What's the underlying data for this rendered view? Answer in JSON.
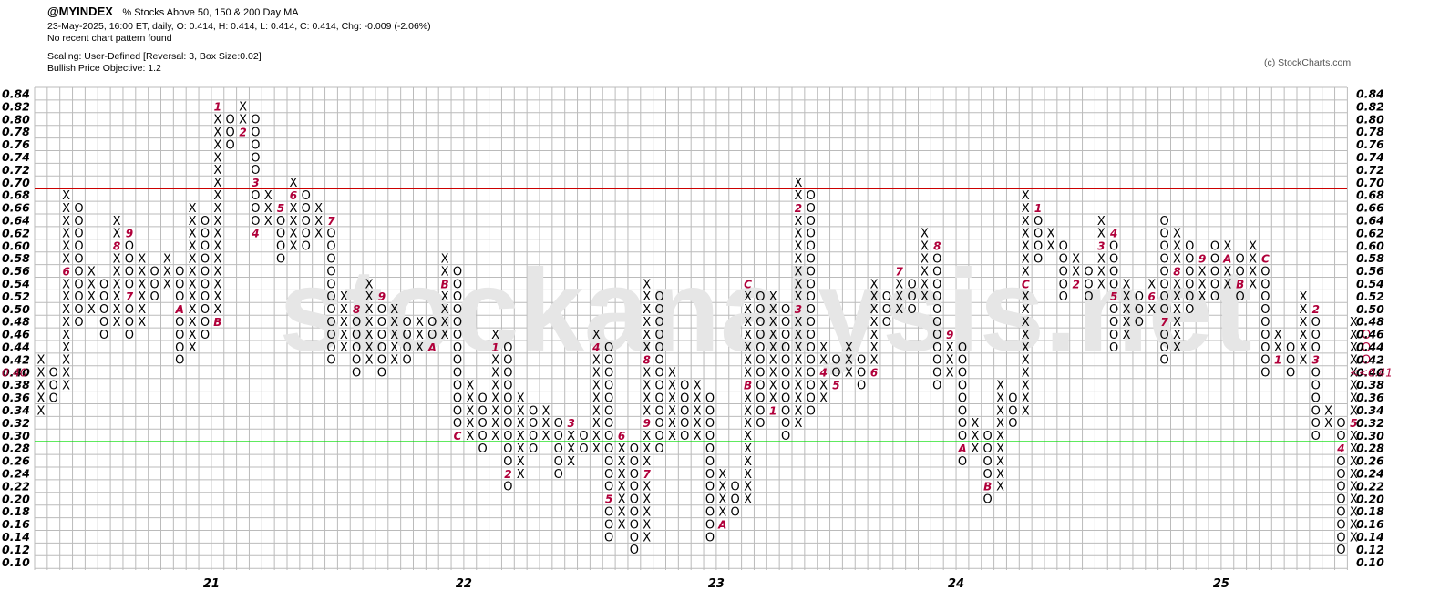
{
  "header": {
    "symbol": "@MYINDEX",
    "title": "% Stocks Above 50, 150 & 200 Day MA",
    "quote": "23-May-2025, 16:00 ET, daily, O: 0.414, H: 0.414, L: 0.414, C: 0.414, Chg: -0.009 (-2.06%)",
    "pattern": "No recent chart pattern found",
    "scaling": "Scaling: User-Defined [Reversal: 3, Box Size:0.02]",
    "objective": "Bullish Price Objective: 1.2"
  },
  "credit": "(c) StockCharts.com",
  "watermark": "stockanalysis.net",
  "colors": {
    "x": "#000000",
    "o": "#000000",
    "month": "#b0003a",
    "resistance": "#cc0000",
    "support": "#00dd00",
    "grid": "#bbbbbb",
    "watermark": "#e6e6e6"
  },
  "chart_data": {
    "type": "point-and-figure",
    "box_size": 0.02,
    "reversal": 3,
    "ylim": [
      0.1,
      0.84
    ],
    "y_ticks": [
      "0.84",
      "0.82",
      "0.80",
      "0.78",
      "0.76",
      "0.74",
      "0.72",
      "0.70",
      "0.68",
      "0.66",
      "0.64",
      "0.62",
      "0.60",
      "0.58",
      "0.56",
      "0.54",
      "0.52",
      "0.50",
      "0.48",
      "0.46",
      "0.44",
      "0.42",
      "0.40",
      "0.38",
      "0.36",
      "0.34",
      "0.32",
      "0.30",
      "0.28",
      "0.26",
      "0.24",
      "0.22",
      "0.20",
      "0.18",
      "0.16",
      "0.14",
      "0.12",
      "0.10"
    ],
    "current_label": "0.40",
    "current_marker": "<<0.41",
    "x_labels": [
      {
        "label": "21",
        "column": 12
      },
      {
        "label": "22",
        "column": 32
      },
      {
        "label": "23",
        "column": 52
      },
      {
        "label": "24",
        "column": 71
      },
      {
        "label": "25",
        "column": 92
      }
    ],
    "resistance_level": 0.695,
    "support_level": 0.295,
    "columns": [
      {
        "t": "X",
        "lo": 0.34,
        "hi": 0.42
      },
      {
        "t": "O",
        "lo": 0.36,
        "hi": 0.4
      },
      {
        "t": "X",
        "lo": 0.38,
        "hi": 0.68,
        "m": {
          "0.56": "6"
        }
      },
      {
        "t": "O",
        "lo": 0.48,
        "hi": 0.66
      },
      {
        "t": "X",
        "lo": 0.5,
        "hi": 0.56
      },
      {
        "t": "O",
        "lo": 0.46,
        "hi": 0.54
      },
      {
        "t": "X",
        "lo": 0.48,
        "hi": 0.64,
        "m": {
          "0.60": "8"
        }
      },
      {
        "t": "O",
        "lo": 0.46,
        "hi": 0.62,
        "m": {
          "0.52": "7",
          "0.62": "9"
        }
      },
      {
        "t": "X",
        "lo": 0.48,
        "hi": 0.58
      },
      {
        "t": "O",
        "lo": 0.52,
        "hi": 0.56
      },
      {
        "t": "X",
        "lo": 0.54,
        "hi": 0.58
      },
      {
        "t": "O",
        "lo": 0.42,
        "hi": 0.56,
        "m": {
          "0.50": "A"
        }
      },
      {
        "t": "X",
        "lo": 0.44,
        "hi": 0.66
      },
      {
        "t": "O",
        "lo": 0.46,
        "hi": 0.64
      },
      {
        "t": "X",
        "lo": 0.48,
        "hi": 0.82,
        "m": {
          "0.82": "1",
          "0.48": "B"
        }
      },
      {
        "t": "O",
        "lo": 0.76,
        "hi": 0.8
      },
      {
        "t": "X",
        "lo": 0.78,
        "hi": 0.82,
        "m": {
          "0.78": "2"
        }
      },
      {
        "t": "O",
        "lo": 0.62,
        "hi": 0.8,
        "m": {
          "0.70": "3",
          "0.62": "4"
        }
      },
      {
        "t": "X",
        "lo": 0.64,
        "hi": 0.68
      },
      {
        "t": "O",
        "lo": 0.58,
        "hi": 0.66,
        "m": {
          "0.66": "5"
        }
      },
      {
        "t": "X",
        "lo": 0.6,
        "hi": 0.7,
        "m": {
          "0.68": "6"
        }
      },
      {
        "t": "O",
        "lo": 0.6,
        "hi": 0.68
      },
      {
        "t": "X",
        "lo": 0.62,
        "hi": 0.66
      },
      {
        "t": "O",
        "lo": 0.42,
        "hi": 0.64,
        "m": {
          "0.64": "7"
        }
      },
      {
        "t": "X",
        "lo": 0.44,
        "hi": 0.52
      },
      {
        "t": "O",
        "lo": 0.4,
        "hi": 0.5,
        "m": {
          "0.50": "8"
        }
      },
      {
        "t": "X",
        "lo": 0.42,
        "hi": 0.54
      },
      {
        "t": "O",
        "lo": 0.4,
        "hi": 0.52,
        "m": {
          "0.52": "9"
        }
      },
      {
        "t": "X",
        "lo": 0.42,
        "hi": 0.5
      },
      {
        "t": "O",
        "lo": 0.42,
        "hi": 0.48
      },
      {
        "t": "X",
        "lo": 0.44,
        "hi": 0.48
      },
      {
        "t": "O",
        "lo": 0.44,
        "hi": 0.48,
        "m": {
          "0.44": "A"
        }
      },
      {
        "t": "X",
        "lo": 0.46,
        "hi": 0.58,
        "m": {
          "0.54": "B"
        }
      },
      {
        "t": "O",
        "lo": 0.3,
        "hi": 0.56,
        "m": {
          "0.30": "C"
        }
      },
      {
        "t": "X",
        "lo": 0.3,
        "hi": 0.38
      },
      {
        "t": "O",
        "lo": 0.28,
        "hi": 0.36
      },
      {
        "t": "X",
        "lo": 0.3,
        "hi": 0.46,
        "m": {
          "0.44": "1"
        }
      },
      {
        "t": "O",
        "lo": 0.22,
        "hi": 0.44,
        "m": {
          "0.24": "2"
        }
      },
      {
        "t": "X",
        "lo": 0.24,
        "hi": 0.36
      },
      {
        "t": "O",
        "lo": 0.28,
        "hi": 0.34
      },
      {
        "t": "X",
        "lo": 0.3,
        "hi": 0.34
      },
      {
        "t": "O",
        "lo": 0.24,
        "hi": 0.32
      },
      {
        "t": "X",
        "lo": 0.26,
        "hi": 0.32,
        "m": {
          "0.32": "3"
        }
      },
      {
        "t": "O",
        "lo": 0.28,
        "hi": 0.3
      },
      {
        "t": "X",
        "lo": 0.28,
        "hi": 0.46,
        "m": {
          "0.44": "4"
        }
      },
      {
        "t": "O",
        "lo": 0.14,
        "hi": 0.44,
        "m": {
          "0.20": "5"
        }
      },
      {
        "t": "X",
        "lo": 0.16,
        "hi": 0.3,
        "m": {
          "0.30": "6"
        }
      },
      {
        "t": "O",
        "lo": 0.12,
        "hi": 0.28
      },
      {
        "t": "X",
        "lo": 0.14,
        "hi": 0.54,
        "m": {
          "0.24": "7",
          "0.42": "8",
          "0.32": "9"
        }
      },
      {
        "t": "O",
        "lo": 0.28,
        "hi": 0.52
      },
      {
        "t": "X",
        "lo": 0.3,
        "hi": 0.4
      },
      {
        "t": "O",
        "lo": 0.3,
        "hi": 0.38
      },
      {
        "t": "X",
        "lo": 0.3,
        "hi": 0.38
      },
      {
        "t": "O",
        "lo": 0.14,
        "hi": 0.36
      },
      {
        "t": "X",
        "lo": 0.16,
        "hi": 0.24,
        "m": {
          "0.16": "A"
        }
      },
      {
        "t": "O",
        "lo": 0.18,
        "hi": 0.22
      },
      {
        "t": "X",
        "lo": 0.2,
        "hi": 0.54,
        "m": {
          "0.38": "B",
          "0.54": "C"
        }
      },
      {
        "t": "O",
        "lo": 0.32,
        "hi": 0.52
      },
      {
        "t": "X",
        "lo": 0.34,
        "hi": 0.52,
        "m": {
          "0.34": "1"
        }
      },
      {
        "t": "O",
        "lo": 0.3,
        "hi": 0.5
      },
      {
        "t": "X",
        "lo": 0.32,
        "hi": 0.7,
        "m": {
          "0.66": "2",
          "0.50": "3"
        }
      },
      {
        "t": "O",
        "lo": 0.34,
        "hi": 0.68
      },
      {
        "t": "X",
        "lo": 0.36,
        "hi": 0.44,
        "m": {
          "0.40": "4"
        }
      },
      {
        "t": "O",
        "lo": 0.38,
        "hi": 0.42,
        "m": {
          "0.38": "5"
        }
      },
      {
        "t": "X",
        "lo": 0.4,
        "hi": 0.44
      },
      {
        "t": "O",
        "lo": 0.38,
        "hi": 0.42
      },
      {
        "t": "X",
        "lo": 0.4,
        "hi": 0.54,
        "m": {
          "0.40": "6"
        }
      },
      {
        "t": "O",
        "lo": 0.48,
        "hi": 0.52
      },
      {
        "t": "X",
        "lo": 0.5,
        "hi": 0.56,
        "m": {
          "0.56": "7"
        }
      },
      {
        "t": "O",
        "lo": 0.5,
        "hi": 0.54
      },
      {
        "t": "X",
        "lo": 0.52,
        "hi": 0.62
      },
      {
        "t": "O",
        "lo": 0.38,
        "hi": 0.6,
        "m": {
          "0.60": "8"
        }
      },
      {
        "t": "X",
        "lo": 0.4,
        "hi": 0.46,
        "m": {
          "0.46": "9"
        }
      },
      {
        "t": "O",
        "lo": 0.26,
        "hi": 0.44,
        "m": {
          "0.28": "A"
        }
      },
      {
        "t": "X",
        "lo": 0.28,
        "hi": 0.32
      },
      {
        "t": "O",
        "lo": 0.2,
        "hi": 0.3,
        "m": {
          "0.22": "B"
        }
      },
      {
        "t": "X",
        "lo": 0.22,
        "hi": 0.38
      },
      {
        "t": "O",
        "lo": 0.32,
        "hi": 0.36
      },
      {
        "t": "X",
        "lo": 0.34,
        "hi": 0.68,
        "m": {
          "0.54": "C"
        }
      },
      {
        "t": "O",
        "lo": 0.58,
        "hi": 0.66,
        "m": {
          "0.66": "1"
        }
      },
      {
        "t": "X",
        "lo": 0.6,
        "hi": 0.62
      },
      {
        "t": "O",
        "lo": 0.52,
        "hi": 0.6
      },
      {
        "t": "X",
        "lo": 0.54,
        "hi": 0.58,
        "m": {
          "0.54": "2"
        }
      },
      {
        "t": "O",
        "lo": 0.52,
        "hi": 0.56
      },
      {
        "t": "X",
        "lo": 0.54,
        "hi": 0.64,
        "m": {
          "0.60": "3"
        }
      },
      {
        "t": "O",
        "lo": 0.44,
        "hi": 0.62,
        "m": {
          "0.62": "4",
          "0.52": "5"
        }
      },
      {
        "t": "X",
        "lo": 0.46,
        "hi": 0.54
      },
      {
        "t": "O",
        "lo": 0.48,
        "hi": 0.52
      },
      {
        "t": "X",
        "lo": 0.5,
        "hi": 0.54,
        "m": {
          "0.52": "6"
        }
      },
      {
        "t": "O",
        "lo": 0.42,
        "hi": 0.64,
        "m": {
          "0.48": "7"
        }
      },
      {
        "t": "X",
        "lo": 0.44,
        "hi": 0.62,
        "m": {
          "0.56": "8"
        }
      },
      {
        "t": "O",
        "lo": 0.5,
        "hi": 0.6
      },
      {
        "t": "X",
        "lo": 0.52,
        "hi": 0.58,
        "m": {
          "0.58": "9"
        }
      },
      {
        "t": "O",
        "lo": 0.52,
        "hi": 0.6
      },
      {
        "t": "X",
        "lo": 0.54,
        "hi": 0.6,
        "m": {
          "0.58": "A"
        }
      },
      {
        "t": "O",
        "lo": 0.52,
        "hi": 0.58,
        "m": {
          "0.54": "B"
        }
      },
      {
        "t": "X",
        "lo": 0.54,
        "hi": 0.6
      },
      {
        "t": "O",
        "lo": 0.4,
        "hi": 0.58,
        "m": {
          "0.58": "C"
        }
      },
      {
        "t": "X",
        "lo": 0.42,
        "hi": 0.46,
        "m": {
          "0.42": "1"
        }
      },
      {
        "t": "O",
        "lo": 0.4,
        "hi": 0.44
      },
      {
        "t": "X",
        "lo": 0.42,
        "hi": 0.52
      },
      {
        "t": "O",
        "lo": 0.3,
        "hi": 0.5,
        "m": {
          "0.50": "2",
          "0.42": "3"
        }
      },
      {
        "t": "X",
        "lo": 0.32,
        "hi": 0.34
      },
      {
        "t": "O",
        "lo": 0.12,
        "hi": 0.32,
        "m": {
          "0.28": "4"
        }
      },
      {
        "t": "X",
        "lo": 0.14,
        "hi": 0.48,
        "m": {
          "0.32": "5"
        }
      },
      {
        "t": "O",
        "lo": 0.42,
        "hi": 0.46,
        "cur": true
      }
    ]
  }
}
